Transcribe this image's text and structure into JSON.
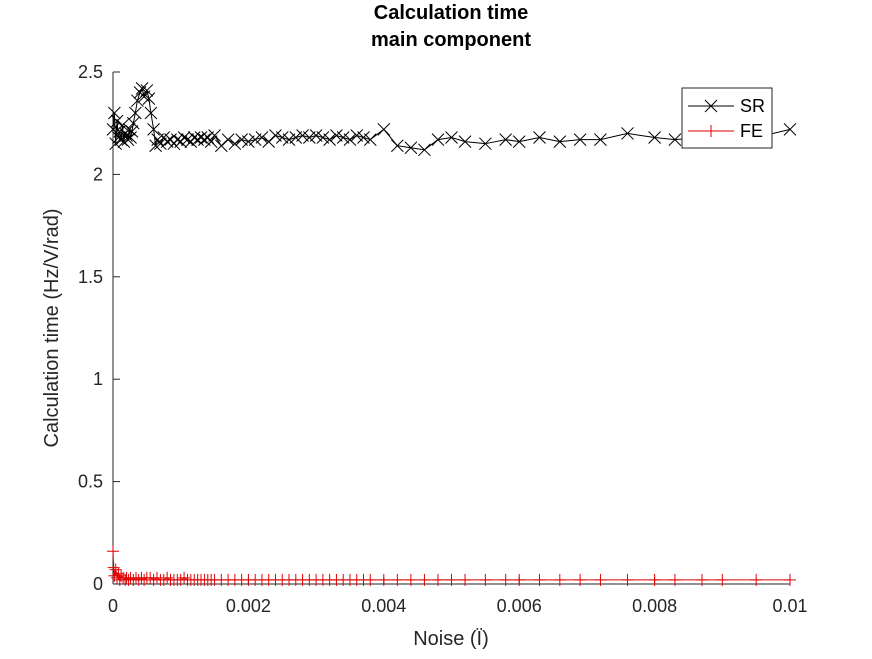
{
  "chart_data": {
    "type": "line",
    "title": [
      "Calculation time",
      "main component"
    ],
    "xlabel": "Noise (Ï)",
    "ylabel": "Calculation time (Hz/V/rad)",
    "xlim": [
      0,
      0.01
    ],
    "ylim": [
      0,
      2.5
    ],
    "xticks": [
      0,
      0.002,
      0.004,
      0.006,
      0.008,
      0.01
    ],
    "xtick_labels": [
      "0",
      "0.002",
      "0.004",
      "0.006",
      "0.008",
      "0.01"
    ],
    "yticks": [
      0,
      0.5,
      1,
      1.5,
      2,
      2.5
    ],
    "ytick_labels": [
      "0",
      "0.5",
      "1",
      "1.5",
      "2",
      "2.5"
    ],
    "grid": false,
    "legend_position": "top-right",
    "series": [
      {
        "name": "SR",
        "color": "#000000",
        "marker": "x",
        "x": [
          0.0,
          2e-05,
          4e-05,
          6e-05,
          8e-05,
          0.0001,
          0.00012,
          0.00014,
          0.00016,
          0.00018,
          0.0002,
          0.00022,
          0.00024,
          0.00026,
          0.00028,
          0.0003,
          0.00033,
          0.00036,
          0.0004,
          0.00043,
          0.00046,
          0.0005,
          0.00053,
          0.00056,
          0.0006,
          0.00063,
          0.00066,
          0.0007,
          0.00075,
          0.0008,
          0.00085,
          0.0009,
          0.00095,
          0.001,
          0.00105,
          0.0011,
          0.00115,
          0.0012,
          0.00125,
          0.0013,
          0.00135,
          0.0014,
          0.00145,
          0.0015,
          0.0016,
          0.0017,
          0.0018,
          0.0019,
          0.002,
          0.0021,
          0.0022,
          0.0023,
          0.0024,
          0.0025,
          0.0026,
          0.0027,
          0.0028,
          0.0029,
          0.003,
          0.0031,
          0.0032,
          0.0033,
          0.0034,
          0.0035,
          0.0036,
          0.0037,
          0.0038,
          0.004,
          0.0042,
          0.0044,
          0.0046,
          0.0048,
          0.005,
          0.0052,
          0.0055,
          0.0058,
          0.006,
          0.0063,
          0.0066,
          0.0069,
          0.0072,
          0.0076,
          0.008,
          0.0083,
          0.0087,
          0.009,
          0.0095,
          0.01
        ],
        "y": [
          2.22,
          2.3,
          2.15,
          2.26,
          2.18,
          2.21,
          2.17,
          2.24,
          2.16,
          2.2,
          2.19,
          2.17,
          2.22,
          2.18,
          2.21,
          2.25,
          2.3,
          2.36,
          2.4,
          2.42,
          2.38,
          2.41,
          2.37,
          2.3,
          2.22,
          2.14,
          2.17,
          2.15,
          2.18,
          2.16,
          2.17,
          2.15,
          2.17,
          2.16,
          2.18,
          2.17,
          2.16,
          2.18,
          2.17,
          2.18,
          2.17,
          2.18,
          2.16,
          2.19,
          2.14,
          2.17,
          2.15,
          2.17,
          2.16,
          2.17,
          2.18,
          2.16,
          2.19,
          2.18,
          2.17,
          2.18,
          2.19,
          2.18,
          2.19,
          2.18,
          2.17,
          2.19,
          2.18,
          2.17,
          2.19,
          2.18,
          2.17,
          2.22,
          2.14,
          2.13,
          2.12,
          2.17,
          2.18,
          2.16,
          2.15,
          2.17,
          2.16,
          2.18,
          2.16,
          2.17,
          2.17,
          2.2,
          2.18,
          2.17,
          2.18,
          2.19,
          2.18,
          2.22
        ]
      },
      {
        "name": "FE",
        "color": "#e00000",
        "marker": "+",
        "x": [
          0.0,
          1e-05,
          2e-05,
          4e-05,
          6e-05,
          8e-05,
          0.0001,
          0.00012,
          0.00015,
          0.00018,
          0.0002,
          0.00023,
          0.00026,
          0.0003,
          0.00034,
          0.00038,
          0.00042,
          0.00046,
          0.0005,
          0.00055,
          0.0006,
          0.00065,
          0.0007,
          0.00075,
          0.0008,
          0.00085,
          0.0009,
          0.00095,
          0.001,
          0.00105,
          0.0011,
          0.00115,
          0.0012,
          0.00125,
          0.0013,
          0.00135,
          0.0014,
          0.00145,
          0.0015,
          0.0016,
          0.0017,
          0.0018,
          0.0019,
          0.002,
          0.0021,
          0.0022,
          0.0023,
          0.0024,
          0.0025,
          0.0026,
          0.0027,
          0.0028,
          0.0029,
          0.003,
          0.0031,
          0.0032,
          0.0033,
          0.0034,
          0.0035,
          0.0036,
          0.0037,
          0.0038,
          0.004,
          0.0042,
          0.0044,
          0.0046,
          0.0048,
          0.005,
          0.0052,
          0.0055,
          0.0058,
          0.006,
          0.0063,
          0.0066,
          0.0069,
          0.0072,
          0.0076,
          0.008,
          0.0083,
          0.0087,
          0.009,
          0.0095,
          0.01
        ],
        "y": [
          0.16,
          0.08,
          0.04,
          0.07,
          0.03,
          0.05,
          0.02,
          0.04,
          0.03,
          0.02,
          0.03,
          0.02,
          0.03,
          0.02,
          0.03,
          0.02,
          0.03,
          0.02,
          0.03,
          0.03,
          0.02,
          0.03,
          0.02,
          0.02,
          0.03,
          0.02,
          0.02,
          0.02,
          0.02,
          0.03,
          0.02,
          0.02,
          0.02,
          0.02,
          0.02,
          0.02,
          0.02,
          0.02,
          0.02,
          0.02,
          0.02,
          0.02,
          0.02,
          0.02,
          0.02,
          0.02,
          0.02,
          0.02,
          0.02,
          0.02,
          0.02,
          0.02,
          0.02,
          0.02,
          0.02,
          0.02,
          0.02,
          0.02,
          0.02,
          0.02,
          0.02,
          0.02,
          0.02,
          0.02,
          0.02,
          0.02,
          0.02,
          0.02,
          0.02,
          0.02,
          0.02,
          0.02,
          0.02,
          0.02,
          0.02,
          0.02,
          0.02,
          0.02,
          0.02,
          0.02,
          0.02,
          0.02,
          0.02
        ]
      }
    ]
  }
}
